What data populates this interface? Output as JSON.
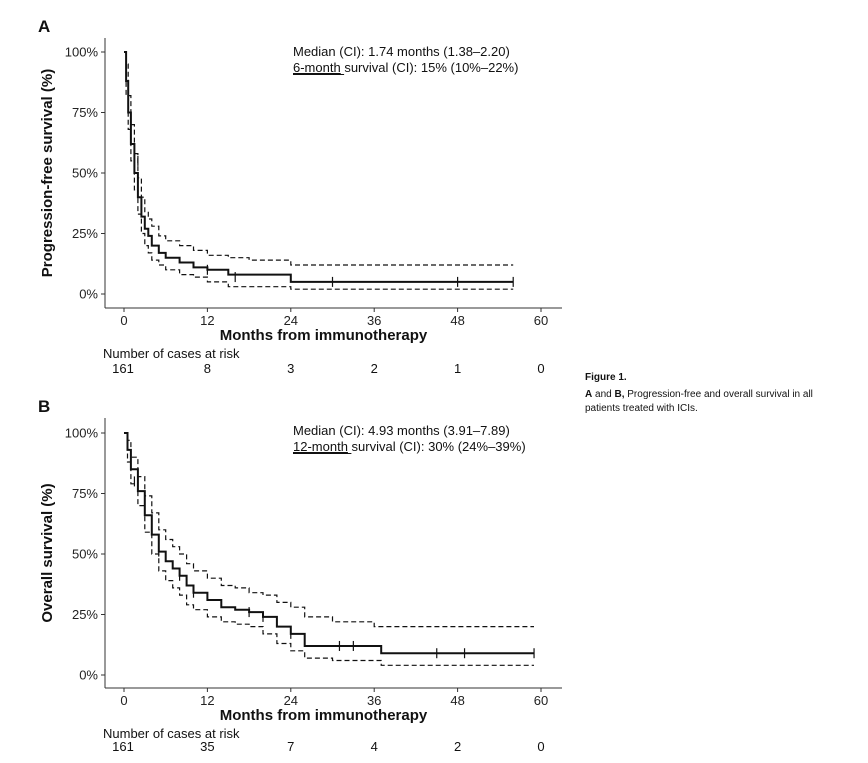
{
  "caption": {
    "title": "Figure 1.",
    "line1_bold": "A",
    "line1_mid": " and ",
    "line1_bold2": "B,",
    "line1_rest": " Progression-free and overall survival in all",
    "line2": "patients treated with ICIs."
  },
  "chart_data": [
    {
      "panel": "A",
      "type": "line",
      "title": "",
      "xlabel": "Months from immunotherapy",
      "ylabel": "Progression-free survival (%)",
      "xlim": [
        0,
        60
      ],
      "ylim": [
        0,
        100
      ],
      "x_ticks": [
        "0",
        "12",
        "24",
        "36",
        "48",
        "60"
      ],
      "y_ticks": [
        "0%",
        "25%",
        "50%",
        "75%",
        "100%"
      ],
      "annotation_line1": "Median (CI): 1.74 months (1.38–2.20)",
      "annotation_line2_underlined": "6-month",
      "annotation_line2_rest": " survival (CI): 15% (10%–22%)",
      "risk_table_label": "Number of cases at risk",
      "risk_counts": [
        "161",
        "8",
        "3",
        "2",
        "1",
        "0"
      ],
      "series": [
        {
          "style": "solid",
          "x": [
            0,
            0.3,
            0.6,
            1.0,
            1.5,
            2.0,
            2.5,
            3.0,
            3.5,
            4.0,
            5.0,
            6.0,
            8.0,
            10.0,
            12.0,
            15.0,
            18.0,
            24.0,
            30.0,
            36.0,
            48.0,
            56.0
          ],
          "y": [
            100,
            88,
            75,
            62,
            50,
            40,
            32,
            27,
            24,
            20,
            17,
            15,
            13,
            11,
            10,
            8,
            8,
            5,
            5,
            5,
            5,
            5
          ]
        },
        {
          "style": "dashed",
          "x": [
            0,
            0.3,
            0.6,
            1.0,
            1.5,
            2.0,
            2.5,
            3.0,
            3.5,
            4.0,
            5.0,
            6.0,
            8.0,
            10.0,
            12.0,
            15.0,
            18.0,
            24.0,
            36.0,
            56.0
          ],
          "y": [
            100,
            95,
            82,
            70,
            58,
            48,
            40,
            34,
            31,
            28,
            24,
            22,
            20,
            18,
            16,
            15,
            14,
            12,
            12,
            12
          ]
        },
        {
          "style": "dashed",
          "x": [
            0,
            0.3,
            0.6,
            1.0,
            1.5,
            2.0,
            2.5,
            3.0,
            3.5,
            4.0,
            5.0,
            6.0,
            8.0,
            10.0,
            12.0,
            15.0,
            24.0,
            56.0
          ],
          "y": [
            100,
            82,
            68,
            55,
            43,
            33,
            25,
            20,
            17,
            14,
            12,
            10,
            8,
            7,
            5,
            3,
            2,
            2
          ]
        }
      ],
      "censor_marks": {
        "x": [
          2.0,
          12.0,
          16.0,
          30.0,
          48.0,
          56.0
        ],
        "y": [
          55,
          10,
          7,
          5,
          5,
          5
        ]
      }
    },
    {
      "panel": "B",
      "type": "line",
      "title": "",
      "xlabel": "Months from immunotherapy",
      "ylabel": "Overall survival (%)",
      "xlim": [
        0,
        60
      ],
      "ylim": [
        0,
        100
      ],
      "x_ticks": [
        "0",
        "12",
        "24",
        "36",
        "48",
        "60"
      ],
      "y_ticks": [
        "0%",
        "25%",
        "50%",
        "75%",
        "100%"
      ],
      "annotation_line1": "Median (CI): 4.93 months (3.91–7.89)",
      "annotation_line2_underlined": "12-month",
      "annotation_line2_rest": " survival (CI): 30% (24%–39%)",
      "risk_table_label": "Number of cases at risk",
      "risk_counts": [
        "161",
        "35",
        "7",
        "4",
        "2",
        "0"
      ],
      "series": [
        {
          "style": "solid",
          "x": [
            0,
            0.5,
            1,
            2,
            3,
            4,
            5,
            6,
            7,
            8,
            9,
            10,
            12,
            14,
            16,
            18,
            20,
            22,
            24,
            26,
            30,
            34,
            37,
            40,
            48,
            59
          ],
          "y": [
            100,
            93,
            85,
            76,
            66,
            58,
            51,
            47,
            44,
            41,
            37,
            34,
            31,
            28,
            27,
            26,
            24,
            20,
            17,
            12,
            12,
            12,
            9,
            9,
            9,
            9
          ]
        },
        {
          "style": "dashed",
          "x": [
            0,
            0.5,
            1,
            2,
            3,
            4,
            5,
            6,
            7,
            8,
            9,
            10,
            12,
            14,
            16,
            18,
            20,
            22,
            24,
            26,
            30,
            36,
            40,
            48,
            59
          ],
          "y": [
            100,
            97,
            90,
            82,
            74,
            67,
            60,
            56,
            53,
            50,
            46,
            43,
            40,
            37,
            36,
            34,
            33,
            30,
            28,
            24,
            22,
            20,
            20,
            20,
            20
          ]
        },
        {
          "style": "dashed",
          "x": [
            0,
            0.5,
            1,
            2,
            3,
            4,
            5,
            6,
            7,
            8,
            9,
            10,
            12,
            14,
            16,
            18,
            20,
            22,
            24,
            26,
            30,
            37,
            40,
            59
          ],
          "y": [
            100,
            88,
            79,
            70,
            59,
            50,
            43,
            39,
            36,
            33,
            29,
            27,
            24,
            22,
            21,
            20,
            17,
            13,
            10,
            7,
            6,
            4,
            4,
            4
          ]
        }
      ],
      "censor_marks": {
        "x": [
          1.5,
          5,
          8,
          10,
          18,
          20,
          24,
          31,
          33,
          45,
          49,
          59
        ],
        "y": [
          80,
          51,
          41,
          34,
          26,
          24,
          17,
          12,
          12,
          9,
          9,
          9
        ]
      }
    }
  ]
}
